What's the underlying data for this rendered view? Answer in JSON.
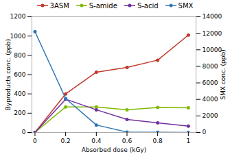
{
  "chart_data": {
    "type": "line",
    "x": [
      0,
      0.2,
      0.4,
      0.6,
      0.8,
      1
    ],
    "series": [
      {
        "name": "3ASM",
        "color": "#c0392b",
        "marker": "o",
        "values": [
          0,
          400,
          625,
          675,
          750,
          1010
        ]
      },
      {
        "name": "S-amide",
        "color": "#7fba00",
        "marker": "o",
        "values": [
          0,
          265,
          265,
          235,
          260,
          255
        ]
      },
      {
        "name": "S-acid",
        "color": "#7030a0",
        "marker": "o",
        "values": [
          0,
          345,
          235,
          135,
          100,
          65
        ]
      },
      {
        "name": "SMX",
        "color": "#2e75b6",
        "marker": "o",
        "axis": "y2",
        "values": [
          12200,
          4100,
          900,
          50,
          20,
          10
        ]
      }
    ],
    "xlabel": "Absorbed dose (kGy)",
    "ylabel": "Byproducts conc. (ppb)",
    "y2label": "SMX conc. (ppb)",
    "xlim": [
      -0.02,
      1.05
    ],
    "xticks": [
      0,
      0.2,
      0.4,
      0.6,
      0.8,
      1
    ],
    "ylim": [
      0,
      1200
    ],
    "yticks": [
      0,
      200,
      400,
      600,
      800,
      1000,
      1200
    ],
    "y2lim": [
      0,
      14000
    ],
    "y2ticks": [
      0,
      2000,
      4000,
      6000,
      8000,
      10000,
      12000,
      14000
    ],
    "grid": false,
    "legend": "top"
  }
}
